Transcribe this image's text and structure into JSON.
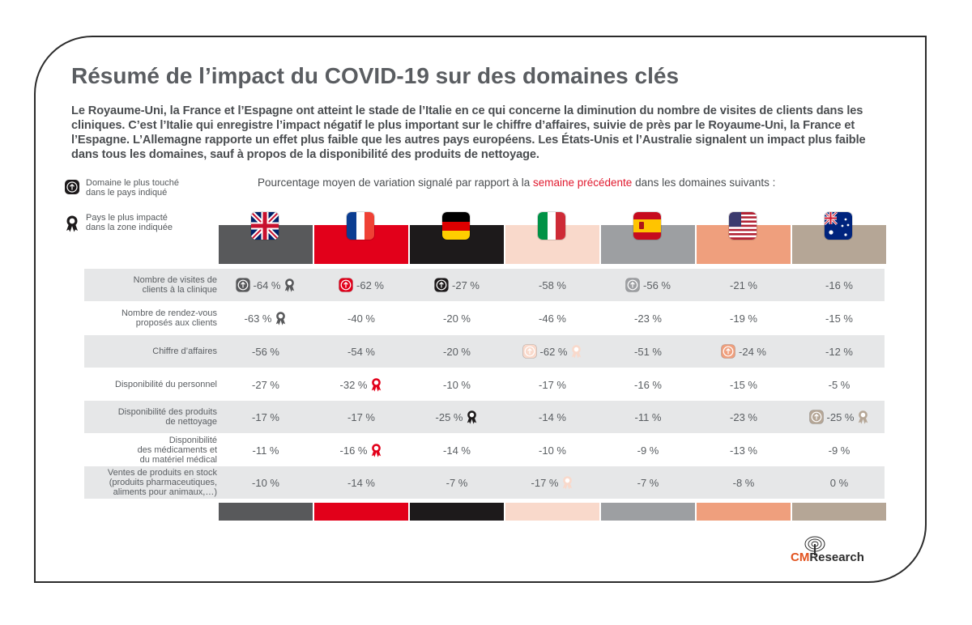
{
  "title": "Résumé de l’impact du COVID-19 sur des domaines clés",
  "intro": "Le Royaume-Uni, la France et l’Espagne ont atteint le stade de l’Italie en ce qui concerne la diminution du nombre de visites de clients dans les cliniques. C’est l’Italie qui enregistre l’impact négatif le plus important sur le chiffre d’affaires, suivie de près par le Royaume-Uni, la France et l’Espagne. L’Allemagne rapporte un effet plus faible que les autres pays européens. Les États-Unis et l’Australie signalent un impact plus faible dans tous les domaines, sauf à propos de la disponibilité des produits de nettoyage.",
  "legend": {
    "most_affected_line1": "Domaine le plus touché",
    "most_affected_line2": "dans le pays indiqué",
    "most_impacted_line1": "Pays le plus impacté",
    "most_impacted_line2": "dans la zone indiquée"
  },
  "subtitle": {
    "before": "Pourcentage moyen de variation signalé par rapport à la ",
    "highlight": "semaine précédente",
    "after": " dans les domaines suivants :"
  },
  "colors": {
    "uk": "#58595b",
    "fr": "#e2001a",
    "de": "#1d1a1b",
    "it": "#f9d9cb",
    "es": "#9d9fa2",
    "us": "#ef9f7d",
    "au": "#b5a696",
    "highlight": "#e0182d"
  },
  "countries": [
    {
      "key": "uk",
      "flag": "uk-flag-icon",
      "icon_fg": "#ffffff"
    },
    {
      "key": "fr",
      "flag": "france-flag-icon",
      "icon_fg": "#ffffff"
    },
    {
      "key": "de",
      "flag": "germany-flag-icon",
      "icon_fg": "#ffffff"
    },
    {
      "key": "it",
      "flag": "italy-flag-icon",
      "icon_fg": "#ffffff"
    },
    {
      "key": "es",
      "flag": "spain-flag-icon",
      "icon_fg": "#ffffff"
    },
    {
      "key": "us",
      "flag": "usa-flag-icon",
      "icon_fg": "#ffffff"
    },
    {
      "key": "au",
      "flag": "australia-flag-icon",
      "icon_fg": "#ffffff"
    }
  ],
  "rows": [
    {
      "label": "Nombre de visites de\nclients à la clinique",
      "cells": [
        {
          "v": "-64 %",
          "up": true,
          "rib": true
        },
        {
          "v": "-62 %",
          "up": true
        },
        {
          "v": "-27 %",
          "up": true
        },
        {
          "v": "-58 %"
        },
        {
          "v": "-56 %",
          "up": true
        },
        {
          "v": "-21 %"
        },
        {
          "v": "-16 %"
        }
      ]
    },
    {
      "label": "Nombre de rendez-vous\nproposés aux clients",
      "cells": [
        {
          "v": "-63 %",
          "rib": true
        },
        {
          "v": "-40 %"
        },
        {
          "v": "-20 %"
        },
        {
          "v": "-46 %"
        },
        {
          "v": "-23 %"
        },
        {
          "v": "-19 %"
        },
        {
          "v": "-15 %"
        }
      ]
    },
    {
      "label": "Chiffre d’affaires",
      "cells": [
        {
          "v": "-56 %"
        },
        {
          "v": "-54 %"
        },
        {
          "v": "-20 %"
        },
        {
          "v": "-62 %",
          "up": true,
          "rib": true
        },
        {
          "v": "-51 %"
        },
        {
          "v": "-24 %",
          "up": true
        },
        {
          "v": "-12 %"
        }
      ]
    },
    {
      "label": "Disponibilité du personnel",
      "cells": [
        {
          "v": "-27 %"
        },
        {
          "v": "-32 %",
          "rib": true
        },
        {
          "v": "-10 %"
        },
        {
          "v": "-17 %"
        },
        {
          "v": "-16 %"
        },
        {
          "v": "-15 %"
        },
        {
          "v": "-5 %"
        }
      ]
    },
    {
      "label": "Disponibilité des produits\nde nettoyage",
      "cells": [
        {
          "v": "-17 %"
        },
        {
          "v": "-17 %"
        },
        {
          "v": "-25 %",
          "rib": true
        },
        {
          "v": "-14 %"
        },
        {
          "v": "-11 %"
        },
        {
          "v": "-23 %"
        },
        {
          "v": "-25 %",
          "up": true,
          "rib": true
        }
      ]
    },
    {
      "label": "Disponibilité\ndes médicaments et\ndu matériel médical",
      "cells": [
        {
          "v": "-11 %"
        },
        {
          "v": "-16 %",
          "rib": true
        },
        {
          "v": "-14 %"
        },
        {
          "v": "-10 %"
        },
        {
          "v": "-9 %"
        },
        {
          "v": "-13 %"
        },
        {
          "v": "-9 %"
        }
      ]
    },
    {
      "label": "Ventes de produits en stock\n(produits pharmaceutiques,\naliments pour animaux,…)",
      "cells": [
        {
          "v": "-10 %"
        },
        {
          "v": "-14 %"
        },
        {
          "v": "-7 %"
        },
        {
          "v": "-17 %",
          "rib": true
        },
        {
          "v": "-7 %"
        },
        {
          "v": "-8 %"
        },
        {
          "v": "0 %"
        }
      ]
    }
  ],
  "logo": {
    "cm": "CM",
    "research": "Research"
  }
}
